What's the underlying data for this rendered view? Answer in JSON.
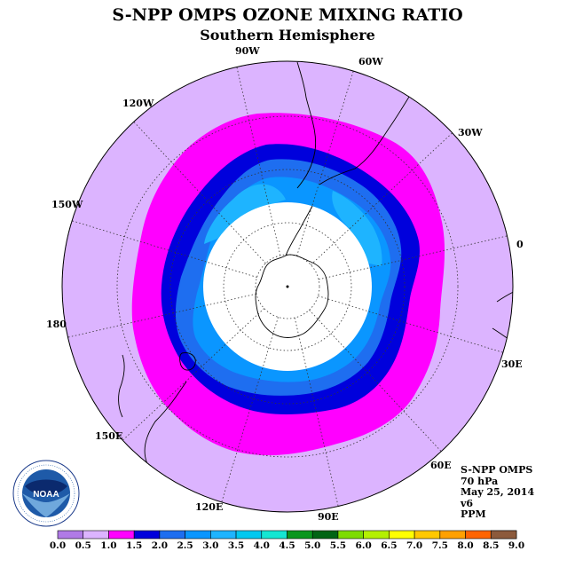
{
  "title": "S-NPP OMPS OZONE MIXING RATIO",
  "subtitle": "Southern Hemisphere",
  "longitude_labels": [
    "90W",
    "60W",
    "30W",
    "0",
    "30E",
    "60E",
    "90E",
    "120E",
    "150E",
    "180",
    "150W",
    "120W"
  ],
  "info": {
    "instrument": "S-NPP OMPS",
    "pressure": "70 hPa",
    "date": "May 25, 2014",
    "version": "v6",
    "units": "PPM"
  },
  "logo_text": "NOAA",
  "colorbar": {
    "ticks": [
      "0.0",
      "0.5",
      "1.0",
      "1.5",
      "2.0",
      "2.5",
      "3.0",
      "3.5",
      "4.0",
      "4.5",
      "5.0",
      "5.5",
      "6.0",
      "6.5",
      "7.0",
      "7.5",
      "8.0",
      "8.5",
      "9.0"
    ],
    "colors": [
      "#b07ae6",
      "#dcb4ff",
      "#ff00ff",
      "#0000dc",
      "#1e6ef0",
      "#0a96ff",
      "#1eb4ff",
      "#00c8f0",
      "#14e6d2",
      "#0a961e",
      "#006414",
      "#7ddc00",
      "#b4f000",
      "#ffff00",
      "#ffc800",
      "#ffa000",
      "#ff6400",
      "#ff0000",
      "#8c5a3c"
    ]
  },
  "map_colors": {
    "0.5-1.0": "#dcb4ff",
    "1.0-1.5": "#ff00ff",
    "1.5-2.0": "#0000dc",
    "2.0-2.5": "#1e6ef0",
    "2.5-3.0": "#0a96ff",
    "3.0-3.5": "#1eb4ff",
    "below": "#ffffff"
  }
}
